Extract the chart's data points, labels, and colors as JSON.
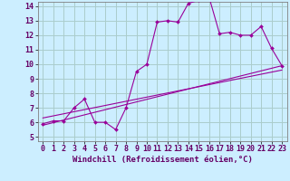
{
  "background_color": "#cceeff",
  "grid_color": "#aacccc",
  "line_color": "#990099",
  "marker_color": "#990099",
  "xlabel": "Windchill (Refroidissement éolien,°C)",
  "xlim": [
    -0.5,
    23.5
  ],
  "ylim": [
    4.7,
    14.3
  ],
  "yticks": [
    5,
    6,
    7,
    8,
    9,
    10,
    11,
    12,
    13,
    14
  ],
  "xticks": [
    0,
    1,
    2,
    3,
    4,
    5,
    6,
    7,
    8,
    9,
    10,
    11,
    12,
    13,
    14,
    15,
    16,
    17,
    18,
    19,
    20,
    21,
    22,
    23
  ],
  "series1_x": [
    0,
    1,
    2,
    3,
    4,
    5,
    6,
    7,
    8,
    9,
    10,
    11,
    12,
    13,
    14,
    15,
    16,
    17,
    18,
    19,
    20,
    21,
    22,
    23
  ],
  "series1_y": [
    5.9,
    6.1,
    6.1,
    7.0,
    7.6,
    6.0,
    6.0,
    5.5,
    7.0,
    9.5,
    10.0,
    12.9,
    13.0,
    12.9,
    14.2,
    14.4,
    14.6,
    12.1,
    12.2,
    12.0,
    12.0,
    12.6,
    11.1,
    9.9
  ],
  "series2_x": [
    0,
    23
  ],
  "series2_y": [
    5.8,
    9.9
  ],
  "series3_x": [
    0,
    23
  ],
  "series3_y": [
    6.3,
    9.6
  ],
  "font_size_label": 6.5,
  "font_size_tick": 6.0
}
